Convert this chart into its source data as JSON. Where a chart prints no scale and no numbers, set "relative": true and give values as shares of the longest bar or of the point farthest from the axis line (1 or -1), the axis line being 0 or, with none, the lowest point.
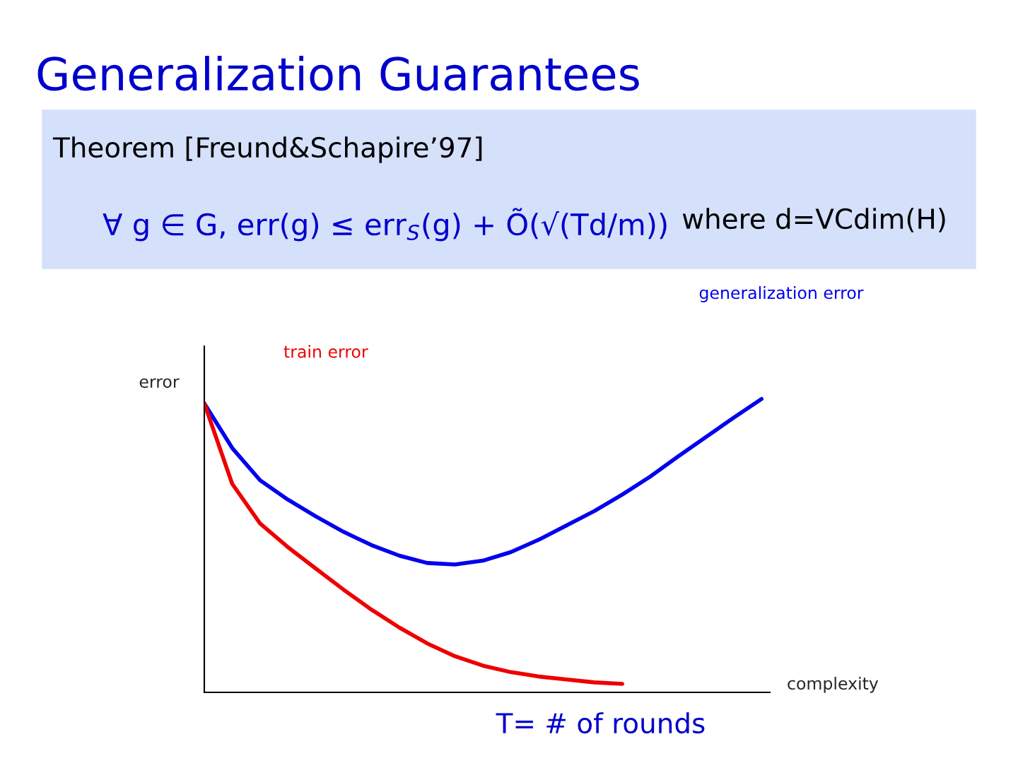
{
  "chart_data": {
    "type": "line",
    "title": "Generalization Guarantees",
    "xlabel": "complexity",
    "ylabel": "error",
    "relative": true,
    "grid": false,
    "legend": false,
    "marker": "none",
    "line_style": "solid",
    "annotations": [
      "Theorem [Freund&Schapire’97]",
      "∀ g ∈ G, err(g) ≤ err$_{S}$(g) + Õ(√(Td/m))",
      "where d=VCdim(H)",
      "T= # of rounds"
    ],
    "categories": [
      null,
      null,
      null,
      null,
      null,
      null,
      null,
      null,
      null,
      null,
      null,
      null,
      null,
      null,
      null,
      null,
      null,
      null,
      null,
      null,
      null
    ],
    "series": [
      {
        "name": "generalization error",
        "color": "#0000ee",
        "values": [
          0.985,
          0.833,
          0.723,
          0.657,
          0.6,
          0.547,
          0.502,
          0.466,
          0.441,
          0.436,
          0.449,
          0.478,
          0.52,
          0.569,
          0.618,
          0.674,
          0.735,
          0.804,
          0.87,
          0.936,
          1.0
        ]
      },
      {
        "name": "train error",
        "color": "#ee0000",
        "values": [
          0.985,
          0.711,
          0.576,
          0.495,
          0.422,
          0.35,
          0.282,
          0.221,
          0.167,
          0.123,
          0.091,
          0.069,
          0.054,
          0.044,
          0.034,
          0.029,
          null,
          null,
          null,
          null,
          null
        ]
      }
    ]
  }
}
